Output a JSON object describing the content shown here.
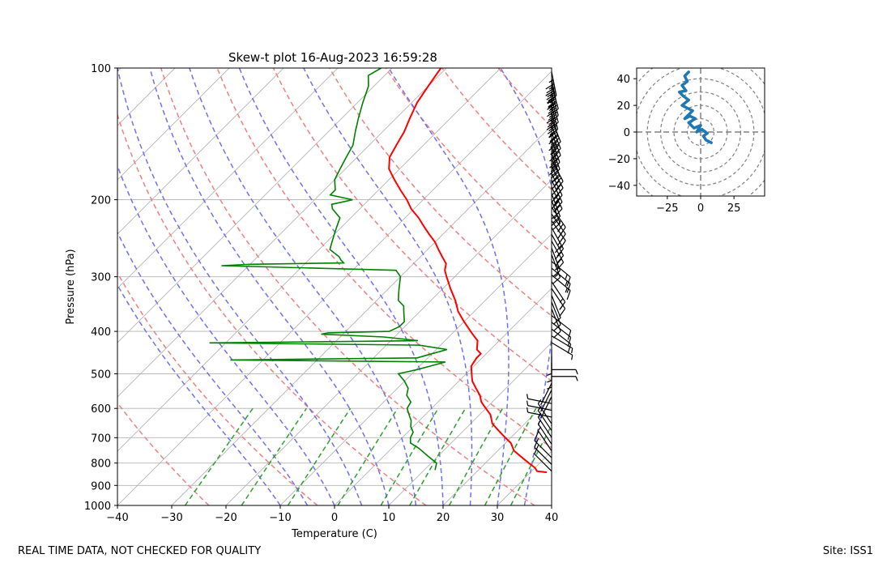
{
  "chart_data": [
    {
      "type": "skew-t",
      "title": "Skew-t plot 16-Aug-2023 16:59:28",
      "xlabel": "Temperature (C)",
      "ylabel": "Pressure (hPa)",
      "xlim": [
        -40,
        40
      ],
      "ylim": [
        1000,
        100
      ],
      "y_scale": "log",
      "x_ticks": [
        "−40",
        "−30",
        "−20",
        "−10",
        "0",
        "10",
        "20",
        "30",
        "40"
      ],
      "x_tick_values": [
        -40,
        -30,
        -20,
        -10,
        0,
        10,
        20,
        30,
        40
      ],
      "y_ticks": [
        "100",
        "200",
        "300",
        "400",
        "500",
        "600",
        "700",
        "800",
        "900",
        "1000"
      ],
      "y_tick_values": [
        100,
        200,
        300,
        400,
        500,
        600,
        700,
        800,
        900,
        1000
      ],
      "grid": true,
      "temperature": {
        "color": "#ff0000",
        "p": [
          840,
          835,
          820,
          800,
          780,
          750,
          720,
          700,
          680,
          650,
          620,
          600,
          580,
          560,
          540,
          520,
          500,
          480,
          460,
          450,
          440,
          420,
          410,
          400,
          380,
          360,
          340,
          320,
          300,
          290,
          280,
          270,
          260,
          250,
          240,
          230,
          220,
          210,
          200,
          190,
          180,
          170,
          160,
          150,
          140,
          130,
          120,
          110,
          100
        ],
        "t": [
          33,
          31,
          30,
          28,
          26,
          23,
          21,
          19,
          17,
          14,
          12,
          10,
          8,
          6.5,
          4.5,
          2.5,
          1,
          -0.5,
          -1,
          -1,
          -2.5,
          -4,
          -5.5,
          -7,
          -10,
          -13,
          -15.5,
          -18.5,
          -21.5,
          -23,
          -24,
          -26,
          -28,
          -30,
          -32.5,
          -35,
          -37.5,
          -40.5,
          -43,
          -46,
          -49,
          -52,
          -54,
          -55,
          -56,
          -57.5,
          -59,
          -60,
          -61
        ]
      },
      "dewpoint": {
        "color": "#008000",
        "p": [
          830,
          800,
          770,
          740,
          720,
          700,
          680,
          660,
          640,
          620,
          600,
          580,
          560,
          540,
          520,
          500,
          490,
          480,
          470,
          465,
          460,
          450,
          440,
          430,
          425,
          420,
          412,
          406,
          403,
          400,
          390,
          380,
          370,
          360,
          350,
          340,
          330,
          320,
          300,
          290,
          283,
          281,
          279,
          275,
          270,
          260,
          250,
          240,
          230,
          220,
          210,
          205,
          200,
          195,
          190,
          180,
          170,
          160,
          150,
          140,
          130,
          120,
          110,
          104,
          100
        ],
        "t": [
          12,
          11,
          8,
          5,
          2.5,
          1.5,
          1,
          -0.5,
          -1.5,
          -3,
          -4.5,
          -5,
          -7,
          -8,
          -10,
          -12.5,
          -10,
          -8,
          -6,
          -46,
          -12,
          -10,
          -8,
          -14,
          -53,
          -15,
          -22,
          -34,
          -33,
          -22,
          -21,
          -21,
          -22,
          -23,
          -24,
          -26,
          -27,
          -28,
          -30,
          -32,
          -65,
          -60,
          -43,
          -44,
          -45,
          -48,
          -49,
          -50,
          -51,
          -52,
          -55,
          -56,
          -53,
          -58,
          -58,
          -60,
          -61,
          -62,
          -63,
          -65,
          -67,
          -69,
          -71,
          -73,
          -72
        ]
      },
      "dry_adiabats_K": [
        250,
        270,
        290,
        310,
        330,
        350,
        370,
        390,
        410,
        430
      ],
      "moist_adiabats_C": [
        -10,
        -5,
        0,
        5,
        10,
        15,
        20,
        25,
        30,
        35
      ],
      "mixing_ratios_gkg": [
        0.4,
        1,
        2,
        4,
        7,
        10,
        16,
        24,
        32
      ]
    },
    {
      "type": "hodograph",
      "xlim": [
        -48,
        48
      ],
      "ylim": [
        -48,
        48
      ],
      "x_ticks": [
        "−25",
        "0",
        "25"
      ],
      "x_tick_values": [
        -25,
        0,
        25
      ],
      "y_ticks": [
        "40",
        "20",
        "0",
        "−20",
        "−40"
      ],
      "y_tick_values": [
        40,
        20,
        0,
        -20,
        -40
      ],
      "rings": [
        10,
        20,
        30,
        40,
        50,
        60
      ],
      "line_color": "#1f77b4",
      "u": [
        8,
        4,
        2,
        5,
        1,
        -3,
        0,
        -5,
        -9,
        -4,
        -8,
        -12,
        -6,
        -10,
        -14,
        -9,
        -13,
        -16,
        -11,
        -14,
        -10,
        -12,
        -9
      ],
      "v": [
        -8,
        -6,
        -3,
        -1,
        2,
        0,
        5,
        3,
        7,
        10,
        12,
        10,
        16,
        18,
        20,
        24,
        27,
        30,
        31,
        35,
        38,
        42,
        45
      ]
    }
  ],
  "notes": {
    "quality": "REAL TIME DATA, NOT CHECKED FOR QUALITY",
    "site": "Site: ISS1"
  }
}
